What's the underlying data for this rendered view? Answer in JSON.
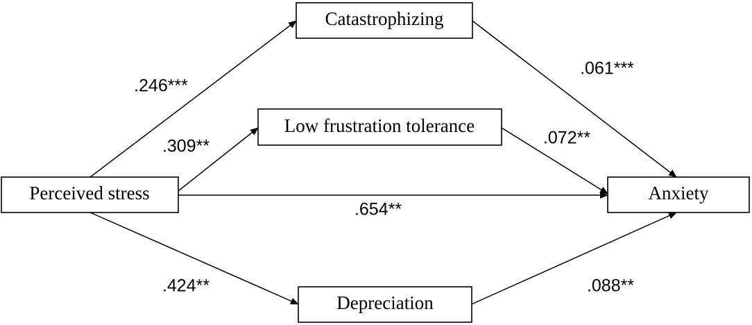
{
  "nodes": [
    {
      "label": "Perceived stress"
    },
    {
      "label": "Catastrophizing"
    },
    {
      "label": "Low frustration tolerance"
    },
    {
      "label": "Depreciation"
    },
    {
      "label": "Anxiety"
    }
  ],
  "edges": [
    {
      "label": ".246***"
    },
    {
      "label": ".309**"
    },
    {
      "label": ".654**"
    },
    {
      "label": ".424**"
    },
    {
      "label": ".061***"
    },
    {
      "label": ".072**"
    },
    {
      "label": ".088**"
    }
  ]
}
